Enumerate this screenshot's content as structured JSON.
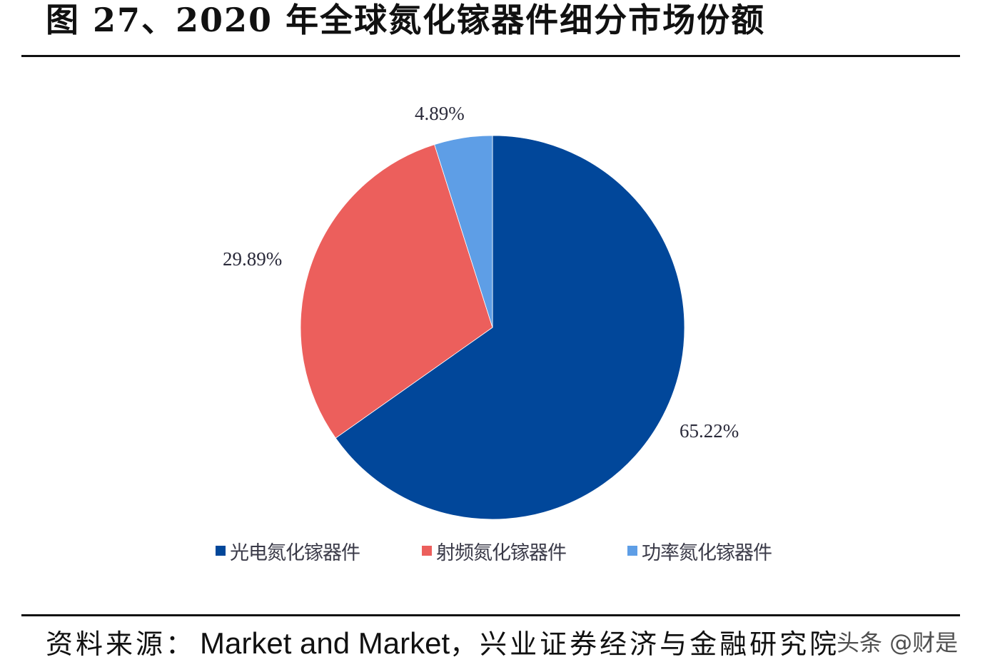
{
  "header": {
    "title": "图 27、2020 年全球氮化镓器件细分市场份额"
  },
  "source": {
    "prefix": "资料来源：",
    "english": "Market and Market",
    "chinese": "，兴业证券经济与金融研究院"
  },
  "watermark": "头条 @财是",
  "colors": {
    "optoelectronic": "#01479a",
    "rf": "#ec5f5c",
    "power": "#5e9ee6"
  },
  "legend": [
    {
      "label": "光电氮化镓器件",
      "color": "#01479a"
    },
    {
      "label": "射频氮化镓器件",
      "color": "#ec5f5c"
    },
    {
      "label": "功率氮化镓器件",
      "color": "#5e9ee6"
    }
  ],
  "labels": {
    "optoelectronic": "65.22%",
    "rf": "29.89%",
    "power": "4.89%"
  },
  "chart_data": {
    "type": "pie",
    "title": "图 27、2020 年全球氮化镓器件细分市场份额",
    "categories": [
      "光电氮化镓器件",
      "射频氮化镓器件",
      "功率氮化镓器件"
    ],
    "values": [
      65.22,
      29.89,
      4.89
    ],
    "unit": "%",
    "colors": [
      "#01479a",
      "#ec5f5c",
      "#5e9ee6"
    ],
    "start_angle": "12 o'clock, clockwise",
    "legend_position": "bottom",
    "data_labels": [
      "65.22%",
      "29.89%",
      "4.89%"
    ]
  }
}
